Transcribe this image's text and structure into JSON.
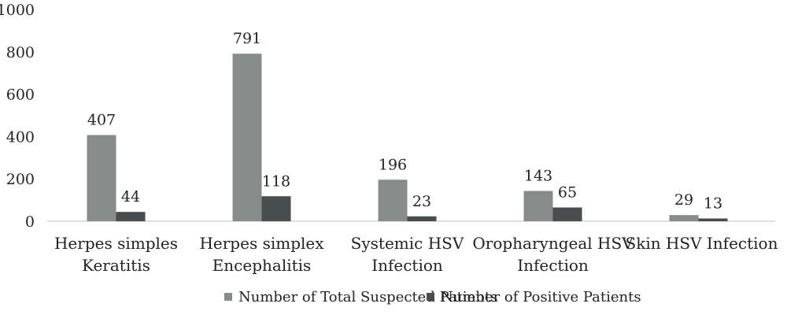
{
  "chart_data": {
    "type": "bar",
    "categories": [
      [
        "Herpes simples",
        "Keratitis"
      ],
      [
        "Herpes simplex",
        "Encephalitis"
      ],
      [
        "Systemic HSV",
        "Infection"
      ],
      [
        "Oropharyngeal HSV",
        "Infection"
      ],
      [
        "Skin HSV Infection"
      ]
    ],
    "series": [
      {
        "name": "Number of Total Suspected Patients",
        "values": [
          407,
          791,
          196,
          143,
          29
        ],
        "color": "#878c8b"
      },
      {
        "name": "Number of Positive Patients",
        "values": [
          44,
          118,
          23,
          65,
          13
        ],
        "color": "#4a4d4d"
      }
    ],
    "yticks": [
      "0",
      "200",
      "400",
      "600",
      "800",
      "1000"
    ],
    "ylim": [
      0,
      1000
    ],
    "grid": false,
    "legend": "bottom",
    "title": "",
    "xlabel": "",
    "ylabel": ""
  }
}
